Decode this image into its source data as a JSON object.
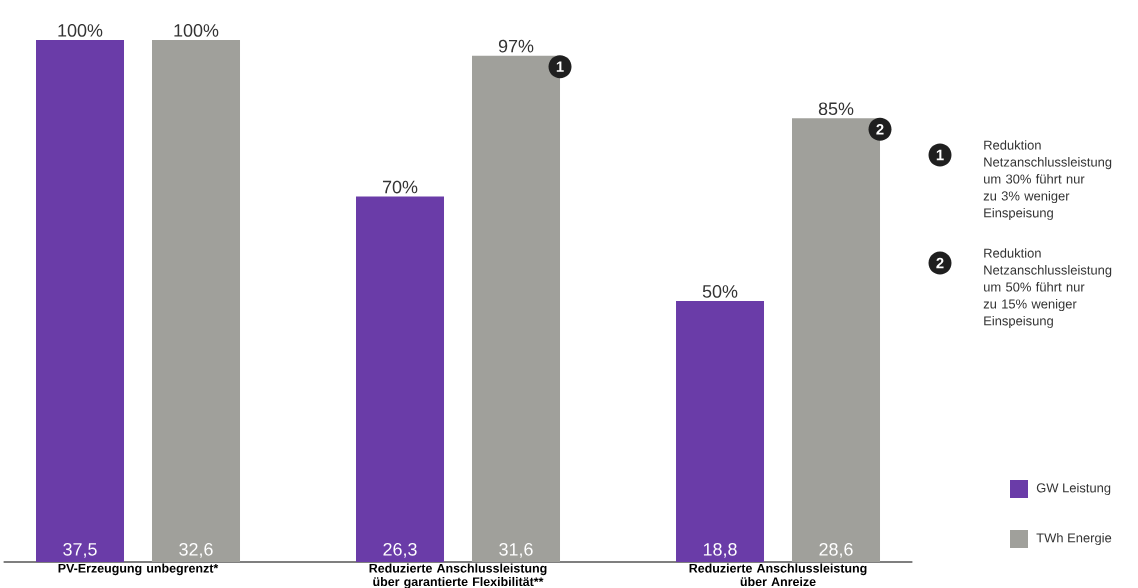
{
  "chart_data": {
    "type": "bar",
    "categories": [
      "PV-Erzeugung unbegrenzt*",
      "Reduzierte Anschlussleistung über garantierte Flexibilität**",
      "Reduzierte Anschlussleistung über Anreize"
    ],
    "series": [
      {
        "name": "GW Leistung",
        "color": "#6a3ca8",
        "values": [
          100,
          70,
          50
        ],
        "value_labels": [
          "100%",
          "70%",
          "50%"
        ]
      },
      {
        "name": "TWh Energie",
        "color": "#a0a09b",
        "values": [
          100,
          97,
          85
        ],
        "value_labels": [
          "100%",
          "97%",
          "85%"
        ]
      }
    ],
    "ylim": [
      0,
      100
    ],
    "legend": "right",
    "annotations": [
      "37,5",
      "32,6",
      "26,3",
      "31,6",
      "18,8",
      "28,6",
      "1",
      "2",
      "Reduktion Netzanschlussleistung um 30% führt nur zu 3% weniger Einspeisung",
      "Reduktion Netzanschlussleistung um 50% führt nur zu 15% weniger Einspeisung"
    ]
  }
}
